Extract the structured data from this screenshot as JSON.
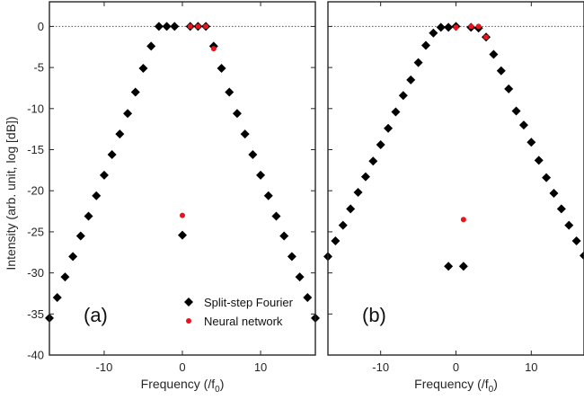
{
  "colors": {
    "split_step": "#000000",
    "neural_network": "#e8141c",
    "axis": "#262626"
  },
  "chart_data": [
    {
      "type": "scatter",
      "panel_label": "(a)",
      "xlabel": "Frequency (/f",
      "xlabel_sub": "0",
      "xlabel_close": ")",
      "ylabel": "Intensity (arb. unit, log [dB])",
      "xlim": [
        -17,
        17
      ],
      "ylim": [
        -40,
        3
      ],
      "xticks": [
        -10,
        0,
        10
      ],
      "yticks": [
        0,
        -5,
        -10,
        -15,
        -20,
        -25,
        -30,
        -35,
        -40
      ],
      "zero_reference_line": true,
      "legend": {
        "placement": "bottom-center",
        "entries": [
          "Split-step Fourier",
          "Neural network"
        ]
      },
      "series": [
        {
          "name": "Split-step Fourier",
          "marker": "diamond",
          "x": [
            -17,
            -16,
            -15,
            -14,
            -13,
            -12,
            -11,
            -10,
            -9,
            -8,
            -7,
            -6,
            -5,
            -4,
            -3,
            -2,
            -1,
            0,
            1,
            2,
            3,
            4,
            5,
            6,
            7,
            8,
            9,
            10,
            11,
            12,
            13,
            14,
            15,
            16,
            17
          ],
          "y": [
            -35.5,
            -33.0,
            -30.5,
            -28.0,
            -25.5,
            -23.1,
            -20.6,
            -18.1,
            -15.6,
            -13.1,
            -10.6,
            -8.0,
            -5.1,
            -2.4,
            0.0,
            0.0,
            0.0,
            -25.4,
            0.0,
            0.0,
            0.0,
            -2.4,
            -5.1,
            -8.0,
            -10.6,
            -13.1,
            -15.6,
            -18.1,
            -20.6,
            -23.1,
            -25.5,
            -28.0,
            -30.5,
            -33.0,
            -35.5
          ]
        },
        {
          "name": "Neural network",
          "marker": "circle",
          "x": [
            0,
            1,
            2,
            3,
            4
          ],
          "y": [
            -23.0,
            0.0,
            0.0,
            0.0,
            -2.7
          ]
        }
      ]
    },
    {
      "type": "scatter",
      "panel_label": "(b)",
      "xlabel": "Frequency (/f",
      "xlabel_sub": "0",
      "xlabel_close": ")",
      "xlim": [
        -17,
        17
      ],
      "ylim": [
        -40,
        3
      ],
      "xticks": [
        -10,
        0,
        10
      ],
      "zero_reference_line": true,
      "series": [
        {
          "name": "Split-step Fourier",
          "marker": "diamond",
          "x": [
            -17,
            -16,
            -15,
            -14,
            -13,
            -12,
            -11,
            -10,
            -9,
            -8,
            -7,
            -6,
            -5,
            -4,
            -3,
            -2,
            -1,
            0,
            1,
            2,
            3,
            4,
            5,
            6,
            7,
            8,
            9,
            10,
            11,
            12,
            13,
            14,
            15,
            16,
            17
          ],
          "y": [
            -28.0,
            -26.1,
            -24.2,
            -22.2,
            -20.2,
            -18.3,
            -16.4,
            -14.4,
            -12.4,
            -10.4,
            -8.4,
            -6.5,
            -4.4,
            -2.3,
            -0.8,
            -0.1,
            -0.1,
            0.0,
            -29.2,
            -0.1,
            -0.2,
            -1.3,
            -3.4,
            -5.4,
            -7.6,
            -10.3,
            -12.0,
            -14.1,
            -16.3,
            -18.4,
            -20.3,
            -22.2,
            -24.2,
            -26.1,
            -27.9
          ]
        },
        {
          "name": "Neural network",
          "marker": "circle",
          "x": [
            0,
            1,
            2,
            3,
            4
          ],
          "y": [
            -0.1,
            -23.5,
            0.0,
            0.0,
            -1.3
          ]
        }
      ],
      "extra_points": [
        {
          "series": "Split-step Fourier",
          "x": -1,
          "y": -29.2
        }
      ]
    }
  ]
}
